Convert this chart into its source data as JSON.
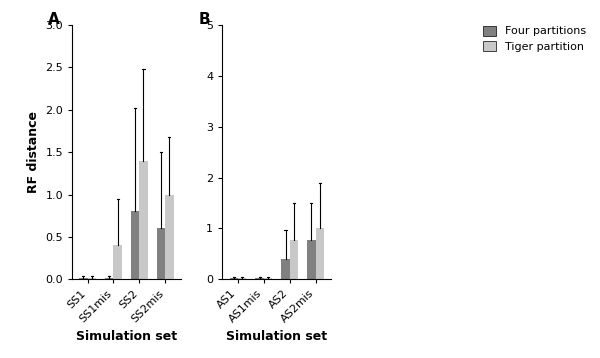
{
  "panel_A": {
    "label": "A",
    "categories": [
      "SS1",
      "SS1mis",
      "SS2",
      "SS2mis"
    ],
    "four_partitions_mean": [
      0.02,
      0.02,
      0.8,
      0.6
    ],
    "four_partitions_err": [
      0.02,
      0.02,
      1.22,
      0.9
    ],
    "tiger_partition_mean": [
      0.02,
      0.4,
      1.4,
      1.0
    ],
    "tiger_partition_err": [
      0.02,
      0.55,
      1.08,
      0.68
    ],
    "ylim": [
      0,
      3.0
    ],
    "yticks": [
      0.0,
      0.5,
      1.0,
      1.5,
      2.0,
      2.5,
      3.0
    ],
    "ylabel": "RF distance"
  },
  "panel_B": {
    "label": "B",
    "categories": [
      "AS1",
      "AS1mis",
      "AS2",
      "AS2mis"
    ],
    "four_partitions_mean": [
      0.02,
      0.02,
      0.4,
      0.78
    ],
    "four_partitions_err": [
      0.02,
      0.02,
      0.56,
      0.72
    ],
    "tiger_partition_mean": [
      0.02,
      0.02,
      0.78,
      1.0
    ],
    "tiger_partition_err": [
      0.02,
      0.02,
      0.72,
      0.9
    ],
    "ylim": [
      0,
      5
    ],
    "yticks": [
      0,
      1,
      2,
      3,
      4,
      5
    ],
    "ylabel": ""
  },
  "xlabel": "Simulation set",
  "four_partitions_color": "#808080",
  "tiger_partition_color": "#c8c8c8",
  "bar_width": 0.32,
  "legend_labels": [
    "Four partitions",
    "Tiger partition"
  ],
  "error_capsize": 2,
  "error_linewidth": 0.8,
  "fig_width": 6.0,
  "fig_height": 3.58,
  "dpi": 100
}
